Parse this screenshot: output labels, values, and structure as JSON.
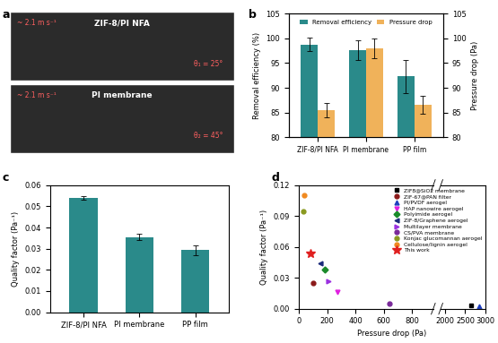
{
  "image_panel": {
    "panel": "a",
    "photos": [
      {
        "label": "ZIF-8/PI NFA",
        "speed": "~ 2.1 m s⁻¹",
        "angle": "θ₁ = 25°"
      },
      {
        "label": "PI membrane",
        "speed": "~ 2.1 m s⁻¹",
        "angle": "θ₂ = 45°"
      }
    ]
  },
  "chart_data": [
    {
      "panel": "b",
      "type": "bar",
      "categories": [
        "ZIF-8/PI NFA",
        "PI membrane",
        "PP film"
      ],
      "y_label": "Removal efficiency (%)",
      "y2_label": "Pressure drop (Pa)",
      "ylim": [
        80,
        105
      ],
      "yticks": [
        80,
        85,
        90,
        95,
        100,
        105
      ],
      "y2lim": [
        80,
        105
      ],
      "y2ticks": [
        80,
        85,
        90,
        95,
        100,
        105
      ],
      "legend": "upper center",
      "series": [
        {
          "name": "Removal efficiency",
          "color": "#2a8a8a",
          "values": [
            98.8,
            97.7,
            92.3
          ],
          "errors": [
            1.3,
            2.0,
            3.3
          ]
        },
        {
          "name": "Pressure drop",
          "color": "#f0b25a",
          "values": [
            85.5,
            98.0,
            86.5
          ],
          "errors": [
            1.5,
            2.0,
            1.8
          ],
          "axis": "y2"
        }
      ]
    },
    {
      "panel": "c",
      "type": "bar",
      "categories": [
        "ZIF-8/PI NFA",
        "PI membrane",
        "PP film"
      ],
      "y_label": "Quality factor (Pa⁻¹)",
      "ylim": [
        0,
        0.06
      ],
      "yticks": [
        {
          "value": 0,
          "label": "0.00"
        },
        {
          "value": 0.01,
          "label": "0.01"
        },
        {
          "value": 0.02,
          "label": "0.02"
        },
        {
          "value": 0.03,
          "label": "0.03"
        },
        {
          "value": 0.04,
          "label": "0.04"
        },
        {
          "value": 0.05,
          "label": "0.05"
        },
        {
          "value": 0.06,
          "label": "0.06"
        }
      ],
      "values": [
        0.054,
        0.0355,
        0.0293
      ],
      "errors": [
        0.001,
        0.0015,
        0.0023
      ],
      "color": "#2a8a8a"
    },
    {
      "panel": "d",
      "type": "scatter",
      "x_label": "Pressure drop (Pa)",
      "y_label": "Quality factor (Pa⁻¹)",
      "xlim": [
        [
          0,
          950
        ],
        [
          1900,
          3000
        ]
      ],
      "xticks": [
        [
          0,
          200,
          400,
          600,
          800
        ],
        [
          2000,
          2500,
          3000
        ]
      ],
      "ylim": [
        0,
        0.12
      ],
      "yticks": [
        {
          "value": 0,
          "label": "0.00"
        },
        {
          "value": 0.03,
          "label": "0.03"
        },
        {
          "value": 0.06,
          "label": "0.06"
        },
        {
          "value": 0.09,
          "label": "0.09"
        },
        {
          "value": 0.12,
          "label": "0.12"
        }
      ],
      "legend": "upper right",
      "series": [
        {
          "name": "ZIF8@SiO2 membrane",
          "color": "#000000",
          "marker": "square",
          "x": [
            2650
          ],
          "values": [
            0.003
          ]
        },
        {
          "name": "ZIF-67@PAN filter",
          "color": "#8b1a1a",
          "marker": "circle",
          "x": [
            100
          ],
          "values": [
            0.025
          ]
        },
        {
          "name": "PI/PVDF aerogel",
          "color": "#1f3fbf",
          "marker": "triangle_up",
          "x": [
            2850
          ],
          "values": [
            0.002
          ]
        },
        {
          "name": "HAP nanowire aerogel",
          "color": "#e020e0",
          "marker": "triangle_down",
          "x": [
            270
          ],
          "values": [
            0.016
          ]
        },
        {
          "name": "Polyimide aerogel",
          "color": "#1a8a2a",
          "marker": "diamond",
          "x": [
            185
          ],
          "values": [
            0.038
          ]
        },
        {
          "name": "ZIF-8/Graphene aerogel",
          "color": "#1a2a7a",
          "marker": "triangle_left",
          "x": [
            150
          ],
          "values": [
            0.044
          ]
        },
        {
          "name": "Multilayer membrane",
          "color": "#9a30e0",
          "marker": "triangle_right",
          "x": [
            210
          ],
          "values": [
            0.027
          ]
        },
        {
          "name": "CS/PVA membrane",
          "color": "#7a2a9a",
          "marker": "circle",
          "x": [
            640
          ],
          "values": [
            0.005
          ]
        },
        {
          "name": "Konjac glucomannan aerogel",
          "color": "#8a9a20",
          "marker": "circle",
          "x": [
            30
          ],
          "values": [
            0.095
          ]
        },
        {
          "name": "Cellulose/lignin aerogel",
          "color": "#f08a20",
          "marker": "circle",
          "x": [
            35
          ],
          "values": [
            0.11
          ]
        },
        {
          "name": "This work",
          "color": "#e02020",
          "marker": "star",
          "x": [
            85
          ],
          "values": [
            0.054
          ]
        }
      ]
    }
  ]
}
